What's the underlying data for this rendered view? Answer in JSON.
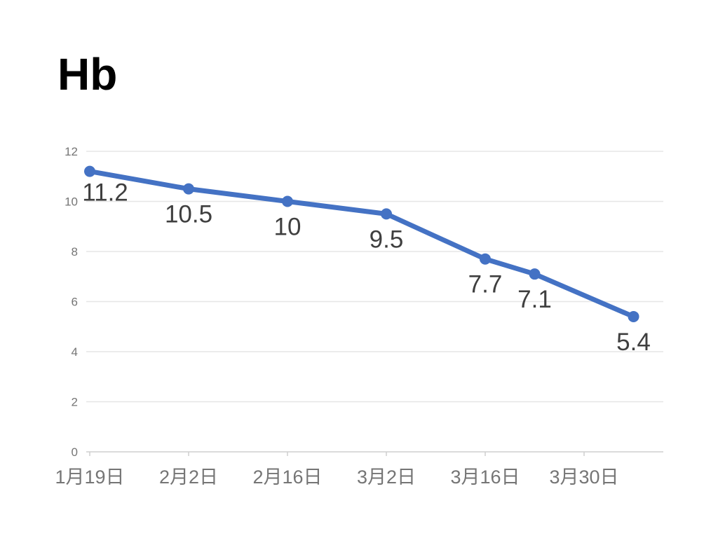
{
  "chart_data": {
    "type": "line",
    "title": "Hb",
    "title_color": "#000000",
    "legend": "none",
    "background_color": "#ffffff",
    "series": [
      {
        "name": "Hb",
        "color": "#4472c4",
        "values": [
          11.2,
          10.5,
          10,
          9.5,
          7.7,
          7.1,
          5.4
        ],
        "x_days_from_first_point": [
          0,
          14,
          28,
          42,
          56,
          63,
          77
        ],
        "data_labels": [
          "11.2",
          "10.5",
          "10",
          "9.5",
          "7.7",
          "7.1",
          "5.4"
        ],
        "data_label_color": "#3f3f3f",
        "marker": "circle",
        "line_width": 7,
        "marker_radius": 8
      }
    ],
    "x_axis": {
      "type": "date",
      "tick_labels": [
        "1月19日",
        "2月2日",
        "2月16日",
        "3月2日",
        "3月16日",
        "3月30日"
      ],
      "tick_days": [
        0,
        14,
        28,
        42,
        56,
        70
      ],
      "label_color": "#757575"
    },
    "y_axis": {
      "min": 0,
      "max": 12,
      "tick_step": 2,
      "ticks": [
        0,
        2,
        4,
        6,
        8,
        10,
        12
      ],
      "label_color": "#757575"
    },
    "grid": {
      "on": true,
      "gridline_color": "#e6e6e6",
      "baseline_color": "#cfcfcf"
    }
  }
}
